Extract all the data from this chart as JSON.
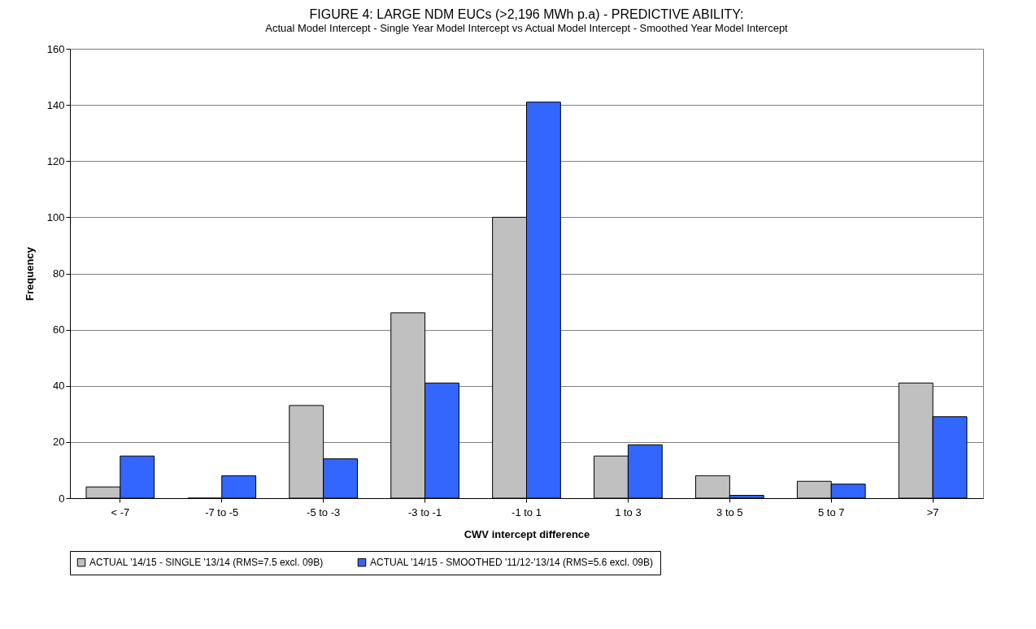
{
  "chart_data": {
    "type": "bar",
    "title": "FIGURE 4: LARGE NDM EUCs (>2,196 MWh p.a) - PREDICTIVE ABILITY:",
    "subtitle": "Actual Model Intercept - Single Year Model Intercept vs Actual Model Intercept - Smoothed Year Model Intercept",
    "xlabel": "CWV intercept difference",
    "ylabel": "Frequency",
    "categories": [
      "< -7",
      "-7 to -5",
      "-5 to -3",
      "-3 to -1",
      "-1 to 1",
      "1 to 3",
      "3 to 5",
      "5 to 7",
      ">7"
    ],
    "series": [
      {
        "name": "ACTUAL '14/15 - SINGLE '13/14 (RMS=7.5 excl. 09B)",
        "color": "#c0c0c0",
        "values": [
          4,
          0,
          33,
          66,
          100,
          15,
          8,
          6,
          41
        ]
      },
      {
        "name": "ACTUAL '14/15 - SMOOTHED '11/12-'13/14 (RMS=5.6 excl. 09B)",
        "color": "#3366ff",
        "values": [
          15,
          8,
          14,
          41,
          141,
          19,
          1,
          5,
          29
        ]
      }
    ],
    "ylim": [
      0,
      160
    ],
    "yticks": [
      0,
      20,
      40,
      60,
      80,
      100,
      120,
      140,
      160
    ],
    "grid": "y",
    "legend": "bottom"
  }
}
